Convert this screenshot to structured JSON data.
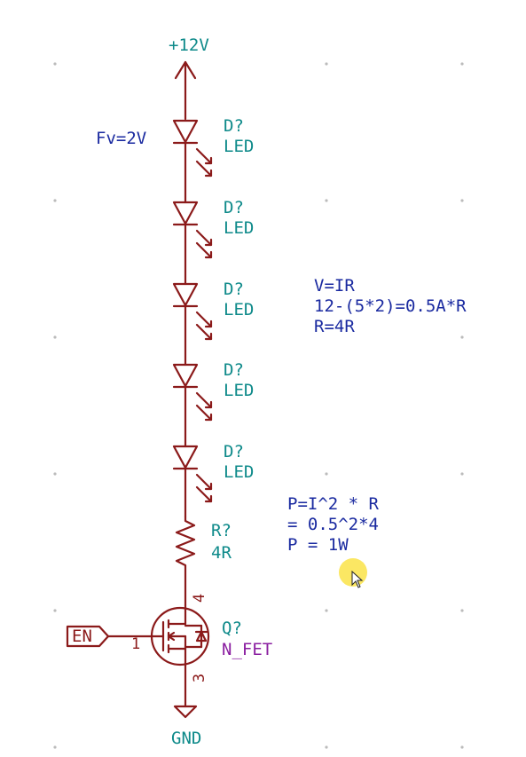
{
  "power": {
    "label": "+12V"
  },
  "ground": {
    "label": "GND"
  },
  "forward_voltage_note": "Fv=2V",
  "leds": [
    {
      "ref": "D?",
      "value": "LED"
    },
    {
      "ref": "D?",
      "value": "LED"
    },
    {
      "ref": "D?",
      "value": "LED"
    },
    {
      "ref": "D?",
      "value": "LED"
    },
    {
      "ref": "D?",
      "value": "LED"
    }
  ],
  "resistor": {
    "ref": "R?",
    "value": "4R"
  },
  "transistor": {
    "ref": "Q?",
    "value": "N_FET",
    "pin_gate": "1",
    "pin_drain": "4",
    "pin_source": "3"
  },
  "enable_label": "EN",
  "notes": {
    "ohms_law": [
      "V=IR",
      "12-(5*2)=0.5A*R",
      "R=4R"
    ],
    "power": [
      "P=I^2 * R",
      "= 0.5^2*4",
      "P = 1W"
    ]
  },
  "colors": {
    "wire": "#8b1a1a",
    "ref_text": "#0e8a8a",
    "note_text": "#1a2aa0",
    "fet_value": "#8a1ea0",
    "grid_dot": "#bbbbbb"
  }
}
